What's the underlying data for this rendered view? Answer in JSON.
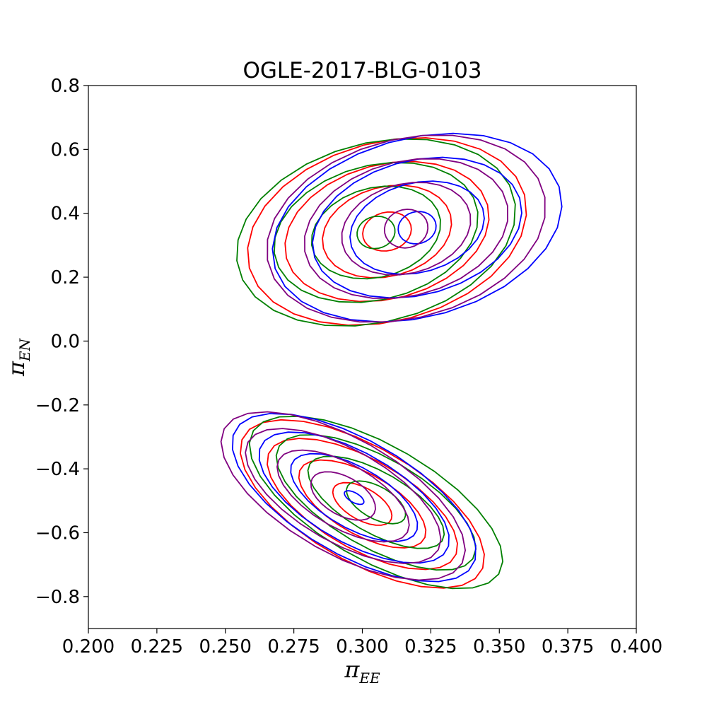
{
  "chart_data": {
    "type": "contour",
    "title": "OGLE-2017-BLG-0103",
    "xlabel_main": "π",
    "xlabel_sub": "EE",
    "ylabel_main": "π",
    "ylabel_sub": "EN",
    "xlim": [
      0.2,
      0.4
    ],
    "ylim": [
      -0.9,
      0.8
    ],
    "xticks": [
      0.2,
      0.225,
      0.25,
      0.275,
      0.3,
      0.325,
      0.35,
      0.375,
      0.4
    ],
    "xtick_labels": [
      "0.200",
      "0.225",
      "0.250",
      "0.275",
      "0.300",
      "0.325",
      "0.350",
      "0.375",
      "0.400"
    ],
    "yticks": [
      0.8,
      0.6,
      0.4,
      0.2,
      0.0,
      -0.2,
      -0.4,
      -0.6,
      -0.8
    ],
    "ytick_labels": [
      "0.8",
      "0.6",
      "0.4",
      "0.2",
      "0.0",
      "−0.2",
      "−0.4",
      "−0.6",
      "−0.8"
    ],
    "grid": false,
    "colors": {
      "red": "#ff0000",
      "green": "#008000",
      "blue": "#0000ff",
      "purple": "#800080"
    },
    "contour_groups": [
      {
        "color_key": "red",
        "center": [
          0.309,
          0.343
        ],
        "angle_deg": 15,
        "rx": [
          0.009,
          0.024,
          0.038,
          0.052
        ],
        "ry": [
          0.06,
          0.14,
          0.21,
          0.28
        ]
      },
      {
        "color_key": "green",
        "center": [
          0.305,
          0.34
        ],
        "angle_deg": 15,
        "rx": [
          0.007,
          0.024,
          0.038,
          0.052
        ],
        "ry": [
          0.05,
          0.14,
          0.21,
          0.28
        ]
      },
      {
        "color_key": "blue",
        "center": [
          0.32,
          0.355
        ],
        "angle_deg": 15,
        "rx": [
          0.007,
          0.025,
          0.039,
          0.054
        ],
        "ry": [
          0.05,
          0.14,
          0.21,
          0.28
        ]
      },
      {
        "color_key": "purple",
        "center": [
          0.316,
          0.352
        ],
        "angle_deg": 15,
        "rx": [
          0.008,
          0.024,
          0.038,
          0.052
        ],
        "ry": [
          0.06,
          0.14,
          0.21,
          0.28
        ]
      },
      {
        "color_key": "red",
        "center": [
          0.3,
          -0.51
        ],
        "angle_deg": -30,
        "rx": [
          0.012,
          0.026,
          0.039,
          0.05
        ],
        "ry": [
          0.05,
          0.095,
          0.14,
          0.18
        ]
      },
      {
        "color_key": "green",
        "center": [
          0.305,
          -0.505
        ],
        "angle_deg": -30,
        "rx": [
          0.012,
          0.028,
          0.041,
          0.052
        ],
        "ry": [
          0.05,
          0.095,
          0.14,
          0.18
        ]
      },
      {
        "color_key": "blue",
        "center": [
          0.297,
          -0.49
        ],
        "angle_deg": -30,
        "rx": [
          0.004,
          0.026,
          0.039,
          0.05
        ],
        "ry": [
          0.015,
          0.095,
          0.14,
          0.18
        ]
      },
      {
        "color_key": "purple",
        "center": [
          0.293,
          -0.485
        ],
        "angle_deg": -30,
        "rx": [
          0.013,
          0.027,
          0.04,
          0.05
        ],
        "ry": [
          0.06,
          0.1,
          0.145,
          0.18
        ]
      }
    ]
  }
}
